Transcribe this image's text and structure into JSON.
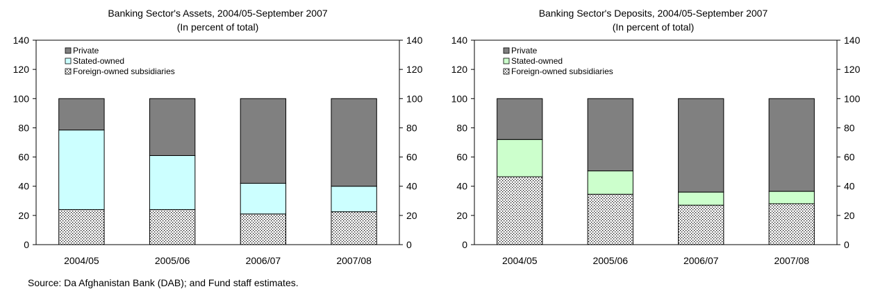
{
  "source_note": "Source: Da Afghanistan Bank (DAB); and Fund staff estimates.",
  "colors": {
    "private": "#808080",
    "state_owned_assets": "#ccffff",
    "state_owned_deposits": "#ccffcc",
    "foreign_pattern": "dotted"
  },
  "chart_data": [
    {
      "type": "bar",
      "stacked": true,
      "title": "Banking Sector's Assets, 2004/05-September 2007",
      "subtitle": "(In percent of total)",
      "categories": [
        "2004/05",
        "2005/06",
        "2006/07",
        "2007/08"
      ],
      "ylim": [
        0,
        140
      ],
      "yticks": [
        "0",
        "20",
        "40",
        "60",
        "80",
        "100",
        "120",
        "140"
      ],
      "legend": [
        "Private",
        "Stated-owned",
        "Foreign-owned subsidiaries"
      ],
      "legend_position": "top-left",
      "series": [
        {
          "name": "Foreign-owned subsidiaries",
          "values": [
            24,
            24,
            21,
            22.5
          ]
        },
        {
          "name": "Stated-owned",
          "values": [
            54.5,
            37,
            21,
            17.5
          ]
        },
        {
          "name": "Private",
          "values": [
            21.5,
            39,
            58,
            60
          ]
        }
      ]
    },
    {
      "type": "bar",
      "stacked": true,
      "title": "Banking Sector's Deposits, 2004/05-September 2007",
      "subtitle": "(In percent of total)",
      "categories": [
        "2004/05",
        "2005/06",
        "2006/07",
        "2007/08"
      ],
      "ylim": [
        0,
        140
      ],
      "yticks": [
        "0",
        "20",
        "40",
        "60",
        "80",
        "100",
        "120",
        "140"
      ],
      "legend": [
        "Private",
        "Stated-owned",
        "Foreign-owned subsidiaries"
      ],
      "legend_position": "top-left",
      "series": [
        {
          "name": "Foreign-owned subsidiaries",
          "values": [
            46.5,
            34.5,
            27,
            28
          ]
        },
        {
          "name": "Stated-owned",
          "values": [
            25.5,
            16,
            9,
            8.5
          ]
        },
        {
          "name": "Private",
          "values": [
            28,
            49.5,
            64,
            63.5
          ]
        }
      ]
    }
  ]
}
